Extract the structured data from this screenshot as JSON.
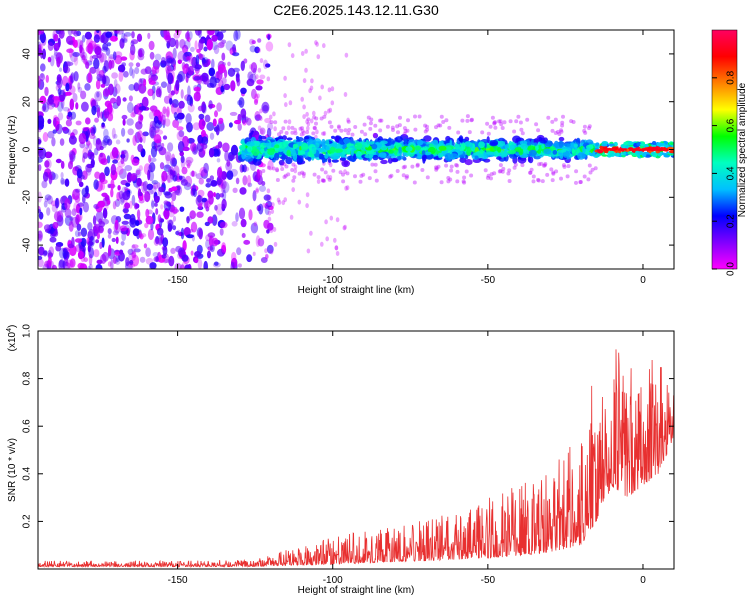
{
  "chart_data": [
    {
      "type": "heatmap",
      "title": "C2E6.2025.143.12.11.G30",
      "xlabel": "Height of straight line (km)",
      "ylabel": "Frequency (Hz)",
      "xlim": [
        -195,
        10
      ],
      "ylim": [
        -50,
        50
      ],
      "x_ticks": [
        -150,
        -100,
        -50,
        0
      ],
      "y_ticks": [
        -40,
        -20,
        0,
        20,
        40
      ],
      "colorbar": {
        "label": "Normalized spectral amplitude",
        "range": [
          0,
          1
        ],
        "ticks": [
          0.0,
          0.2,
          0.4,
          0.6,
          0.8
        ],
        "colors": [
          "#ff00ff",
          "#8000ff",
          "#0000ff",
          "#00c0ff",
          "#00ffc0",
          "#00ff00",
          "#ffff00",
          "#ff8000",
          "#ff0000",
          "#ff0060"
        ]
      },
      "regions": [
        {
          "name": "",
          "x_range": [
            -195,
            -120
          ],
          "freq_range": [
            -50,
            50
          ],
          "amplitude": 0.12
        },
        {
          "name": "",
          "x_range": [
            -130,
            -15
          ],
          "freq_range": [
            -7,
            7
          ],
          "amplitude": 0.35
        },
        {
          "name": "",
          "x_range": [
            -15,
            10
          ],
          "freq_range": [
            -2,
            2
          ],
          "amplitude": 0.95
        }
      ]
    },
    {
      "type": "line",
      "title": "",
      "xlabel": "Height of straight line (km)",
      "ylabel": "SNR (10 * v/v)",
      "y_multiplier": "(x10",
      "y_multiplier_exp": "4",
      "xlim": [
        -195,
        10
      ],
      "ylim": [
        0,
        1.0
      ],
      "x_ticks": [
        -150,
        -100,
        -50,
        0
      ],
      "y_ticks": [
        0.2,
        0.4,
        0.6,
        0.8,
        1.0
      ],
      "color": "#e83030",
      "envelope": [
        {
          "x": -195,
          "base": 0.01,
          "peak": 0.035
        },
        {
          "x": -150,
          "base": 0.01,
          "peak": 0.035
        },
        {
          "x": -125,
          "base": 0.01,
          "peak": 0.04
        },
        {
          "x": -115,
          "base": 0.015,
          "peak": 0.08
        },
        {
          "x": -100,
          "base": 0.02,
          "peak": 0.14
        },
        {
          "x": -80,
          "base": 0.03,
          "peak": 0.18
        },
        {
          "x": -60,
          "base": 0.04,
          "peak": 0.24
        },
        {
          "x": -45,
          "base": 0.05,
          "peak": 0.33
        },
        {
          "x": -30,
          "base": 0.07,
          "peak": 0.4
        },
        {
          "x": -20,
          "base": 0.1,
          "peak": 0.62
        },
        {
          "x": -15,
          "base": 0.2,
          "peak": 0.85
        },
        {
          "x": -10,
          "base": 0.35,
          "peak": 0.95
        },
        {
          "x": -5,
          "base": 0.3,
          "peak": 0.92
        },
        {
          "x": 0,
          "base": 0.35,
          "peak": 0.9
        },
        {
          "x": 5,
          "base": 0.4,
          "peak": 0.88
        },
        {
          "x": 10,
          "base": 0.55,
          "peak": 0.75
        }
      ]
    }
  ]
}
